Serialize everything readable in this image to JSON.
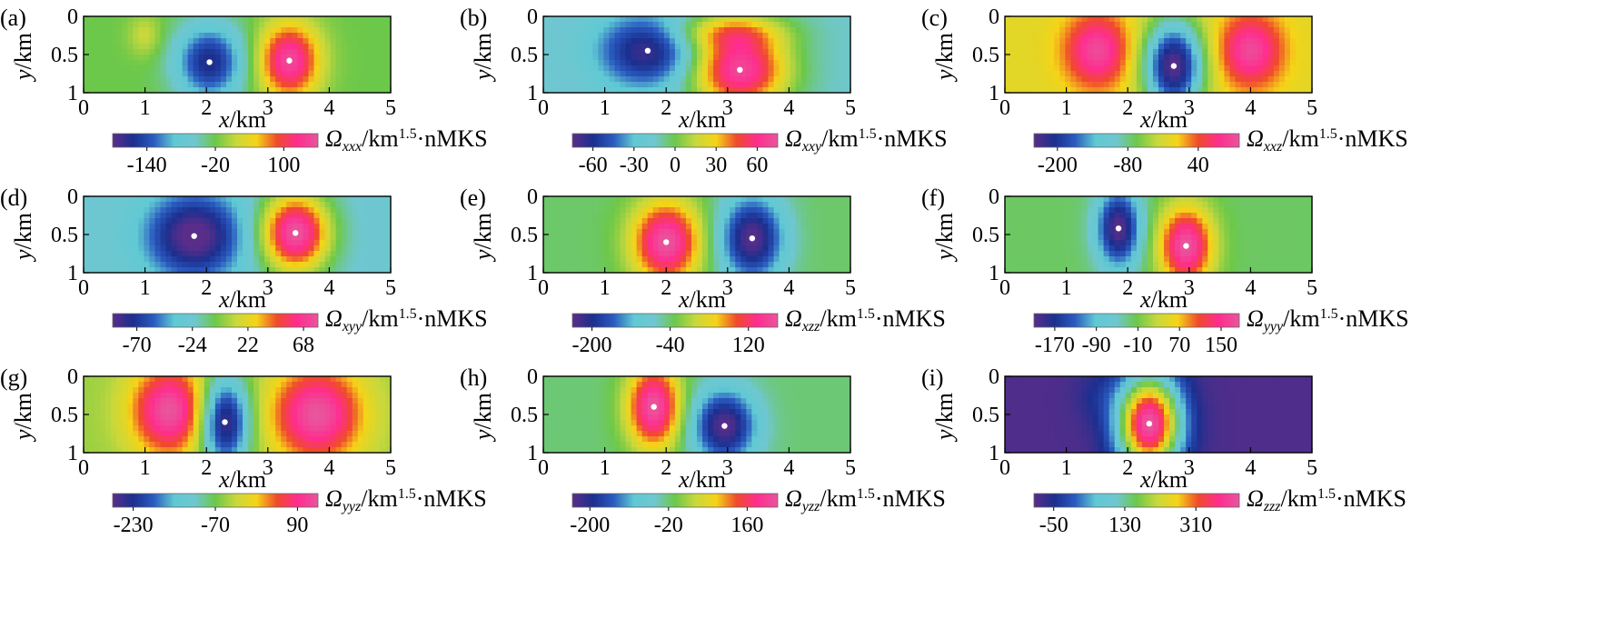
{
  "figure": {
    "x_axis_label": "x/km",
    "y_axis_label": "y/km",
    "colorbar_unit": "/km^1.5·nMKS",
    "colormap": [
      "#5a2d8a",
      "#1b2f8f",
      "#2a5bc0",
      "#5fc9d4",
      "#6fc7d0",
      "#6cc84a",
      "#c8d83c",
      "#f5d417",
      "#f04a2b",
      "#ff2d8f",
      "#e8559d"
    ]
  },
  "chart_data": [
    {
      "type": "heatmap",
      "panel": "(a)",
      "component": "Ω_xxx",
      "subscript": "xxx",
      "x_ticks": [
        "0",
        "1",
        "2",
        "3",
        "4",
        "5"
      ],
      "y_ticks": [
        "0",
        "0.5",
        "1"
      ],
      "xlim": [
        0,
        5
      ],
      "ylim": [
        0,
        1
      ],
      "colorbar_ticks": [
        "-140",
        "-20",
        "100"
      ],
      "colorbar_range": [
        -200,
        160
      ],
      "background": -20,
      "anomalies": [
        {
          "x": 2.05,
          "y": 0.6,
          "rx": 0.7,
          "ry": 0.62,
          "value": -170,
          "marked": true
        },
        {
          "x": 3.35,
          "y": 0.58,
          "rx": 0.62,
          "ry": 0.62,
          "value": 150,
          "marked": true
        },
        {
          "x": 1.0,
          "y": 0.25,
          "rx": 0.35,
          "ry": 0.35,
          "value": 20,
          "marked": false
        }
      ]
    },
    {
      "type": "heatmap",
      "panel": "(b)",
      "component": "Ω_xxy",
      "subscript": "xxy",
      "x_ticks": [
        "0",
        "1",
        "2",
        "3",
        "4",
        "5"
      ],
      "y_ticks": [
        "0",
        "0.5",
        "1"
      ],
      "xlim": [
        0,
        5
      ],
      "ylim": [
        0,
        1
      ],
      "colorbar_ticks": [
        "-60",
        "-30",
        "0",
        "30",
        "60"
      ],
      "colorbar_range": [
        -75,
        75
      ],
      "background": -15,
      "anomalies": [
        {
          "x": 1.7,
          "y": 0.45,
          "rx": 1.0,
          "ry": 0.6,
          "value": -70,
          "marked": true
        },
        {
          "x": 3.2,
          "y": 0.7,
          "rx": 1.0,
          "ry": 0.65,
          "value": 70,
          "marked": true
        },
        {
          "x": 3.0,
          "y": 0.2,
          "rx": 1.2,
          "ry": 0.3,
          "value": 20,
          "marked": false
        }
      ]
    },
    {
      "type": "heatmap",
      "panel": "(c)",
      "component": "Ω_xxz",
      "subscript": "xxz",
      "x_ticks": [
        "0",
        "1",
        "2",
        "3",
        "4",
        "5"
      ],
      "y_ticks": [
        "0",
        "0.5",
        "1"
      ],
      "xlim": [
        0,
        5
      ],
      "ylim": [
        0,
        1
      ],
      "colorbar_ticks": [
        "-200",
        "-80",
        "40"
      ],
      "colorbar_range": [
        -240,
        110
      ],
      "background": -10,
      "anomalies": [
        {
          "x": 2.75,
          "y": 0.65,
          "rx": 0.6,
          "ry": 0.75,
          "value": -240,
          "marked": true
        },
        {
          "x": 1.5,
          "y": 0.45,
          "rx": 0.65,
          "ry": 0.6,
          "value": 100,
          "marked": false
        },
        {
          "x": 4.0,
          "y": 0.45,
          "rx": 0.65,
          "ry": 0.6,
          "value": 100,
          "marked": false
        }
      ]
    },
    {
      "type": "heatmap",
      "panel": "(d)",
      "component": "Ω_xyy",
      "subscript": "xyy",
      "x_ticks": [
        "0",
        "1",
        "2",
        "3",
        "4",
        "5"
      ],
      "y_ticks": [
        "0",
        "0.5",
        "1"
      ],
      "xlim": [
        0,
        5
      ],
      "ylim": [
        0,
        1
      ],
      "colorbar_ticks": [
        "-70",
        "-24",
        "22",
        "68"
      ],
      "colorbar_range": [
        -90,
        80
      ],
      "background": -24,
      "anomalies": [
        {
          "x": 1.8,
          "y": 0.52,
          "rx": 0.95,
          "ry": 0.68,
          "value": -95,
          "marked": true
        },
        {
          "x": 3.45,
          "y": 0.48,
          "rx": 0.7,
          "ry": 0.65,
          "value": 80,
          "marked": true
        }
      ]
    },
    {
      "type": "heatmap",
      "panel": "(e)",
      "component": "Ω_xzz",
      "subscript": "xzz",
      "x_ticks": [
        "0",
        "1",
        "2",
        "3",
        "4",
        "5"
      ],
      "y_ticks": [
        "0",
        "0.5",
        "1"
      ],
      "xlim": [
        0,
        5
      ],
      "ylim": [
        0,
        1
      ],
      "colorbar_ticks": [
        "-200",
        "-40",
        "120"
      ],
      "colorbar_range": [
        -240,
        180
      ],
      "background": -40,
      "anomalies": [
        {
          "x": 2.0,
          "y": 0.6,
          "rx": 0.7,
          "ry": 0.68,
          "value": 180,
          "marked": true
        },
        {
          "x": 3.4,
          "y": 0.55,
          "rx": 0.65,
          "ry": 0.7,
          "value": -240,
          "marked": true
        }
      ]
    },
    {
      "type": "heatmap",
      "panel": "(f)",
      "component": "Ω_yyy",
      "subscript": "yyy",
      "x_ticks": [
        "0",
        "1",
        "2",
        "3",
        "4",
        "5"
      ],
      "y_ticks": [
        "0",
        "0.5",
        "1"
      ],
      "xlim": [
        0,
        5
      ],
      "ylim": [
        0,
        1
      ],
      "colorbar_ticks": [
        "-170",
        "-90",
        "-10",
        "70",
        "150"
      ],
      "colorbar_range": [
        -210,
        185
      ],
      "background": -20,
      "anomalies": [
        {
          "x": 1.85,
          "y": 0.42,
          "rx": 0.45,
          "ry": 0.65,
          "value": -210,
          "marked": true
        },
        {
          "x": 2.95,
          "y": 0.65,
          "rx": 0.55,
          "ry": 0.65,
          "value": 185,
          "marked": true
        }
      ]
    },
    {
      "type": "heatmap",
      "panel": "(g)",
      "component": "Ω_yyz",
      "subscript": "yyz",
      "x_ticks": [
        "0",
        "1",
        "2",
        "3",
        "4",
        "5"
      ],
      "y_ticks": [
        "0",
        "0.5",
        "1"
      ],
      "xlim": [
        0,
        5
      ],
      "ylim": [
        0,
        1
      ],
      "colorbar_ticks": [
        "-230",
        "-70",
        "90"
      ],
      "colorbar_range": [
        -270,
        130
      ],
      "background": -50,
      "anomalies": [
        {
          "x": 2.3,
          "y": 0.6,
          "rx": 0.5,
          "ry": 0.75,
          "value": -270,
          "marked": true
        },
        {
          "x": 1.4,
          "y": 0.45,
          "rx": 0.8,
          "ry": 0.75,
          "value": 130,
          "marked": false
        },
        {
          "x": 3.8,
          "y": 0.5,
          "rx": 0.95,
          "ry": 0.8,
          "value": 130,
          "marked": false
        }
      ]
    },
    {
      "type": "heatmap",
      "panel": "(h)",
      "component": "Ω_yzz",
      "subscript": "yzz",
      "x_ticks": [
        "0",
        "1",
        "2",
        "3",
        "4",
        "5"
      ],
      "y_ticks": [
        "0",
        "0.5",
        "1"
      ],
      "xlim": [
        0,
        5
      ],
      "ylim": [
        0,
        1
      ],
      "colorbar_ticks": [
        "-200",
        "-20",
        "160"
      ],
      "colorbar_range": [
        -240,
        230
      ],
      "background": -20,
      "anomalies": [
        {
          "x": 1.8,
          "y": 0.4,
          "rx": 0.55,
          "ry": 0.7,
          "value": 230,
          "marked": true
        },
        {
          "x": 2.95,
          "y": 0.65,
          "rx": 0.65,
          "ry": 0.6,
          "value": -240,
          "marked": true
        }
      ]
    },
    {
      "type": "heatmap",
      "panel": "(i)",
      "component": "Ω_zzz",
      "subscript": "zzz",
      "x_ticks": [
        "0",
        "1",
        "2",
        "3",
        "4",
        "5"
      ],
      "y_ticks": [
        "0",
        "0.5",
        "1"
      ],
      "xlim": [
        0,
        5
      ],
      "ylim": [
        0,
        1
      ],
      "colorbar_ticks": [
        "-50",
        "130",
        "310"
      ],
      "colorbar_range": [
        -100,
        420
      ],
      "background": -90,
      "anomalies": [
        {
          "x": 2.35,
          "y": 0.62,
          "rx": 0.65,
          "ry": 0.8,
          "value": 420,
          "marked": true
        },
        {
          "x": 1.5,
          "y": 0.25,
          "rx": 0.5,
          "ry": 0.45,
          "value": -60,
          "marked": false
        }
      ]
    }
  ]
}
